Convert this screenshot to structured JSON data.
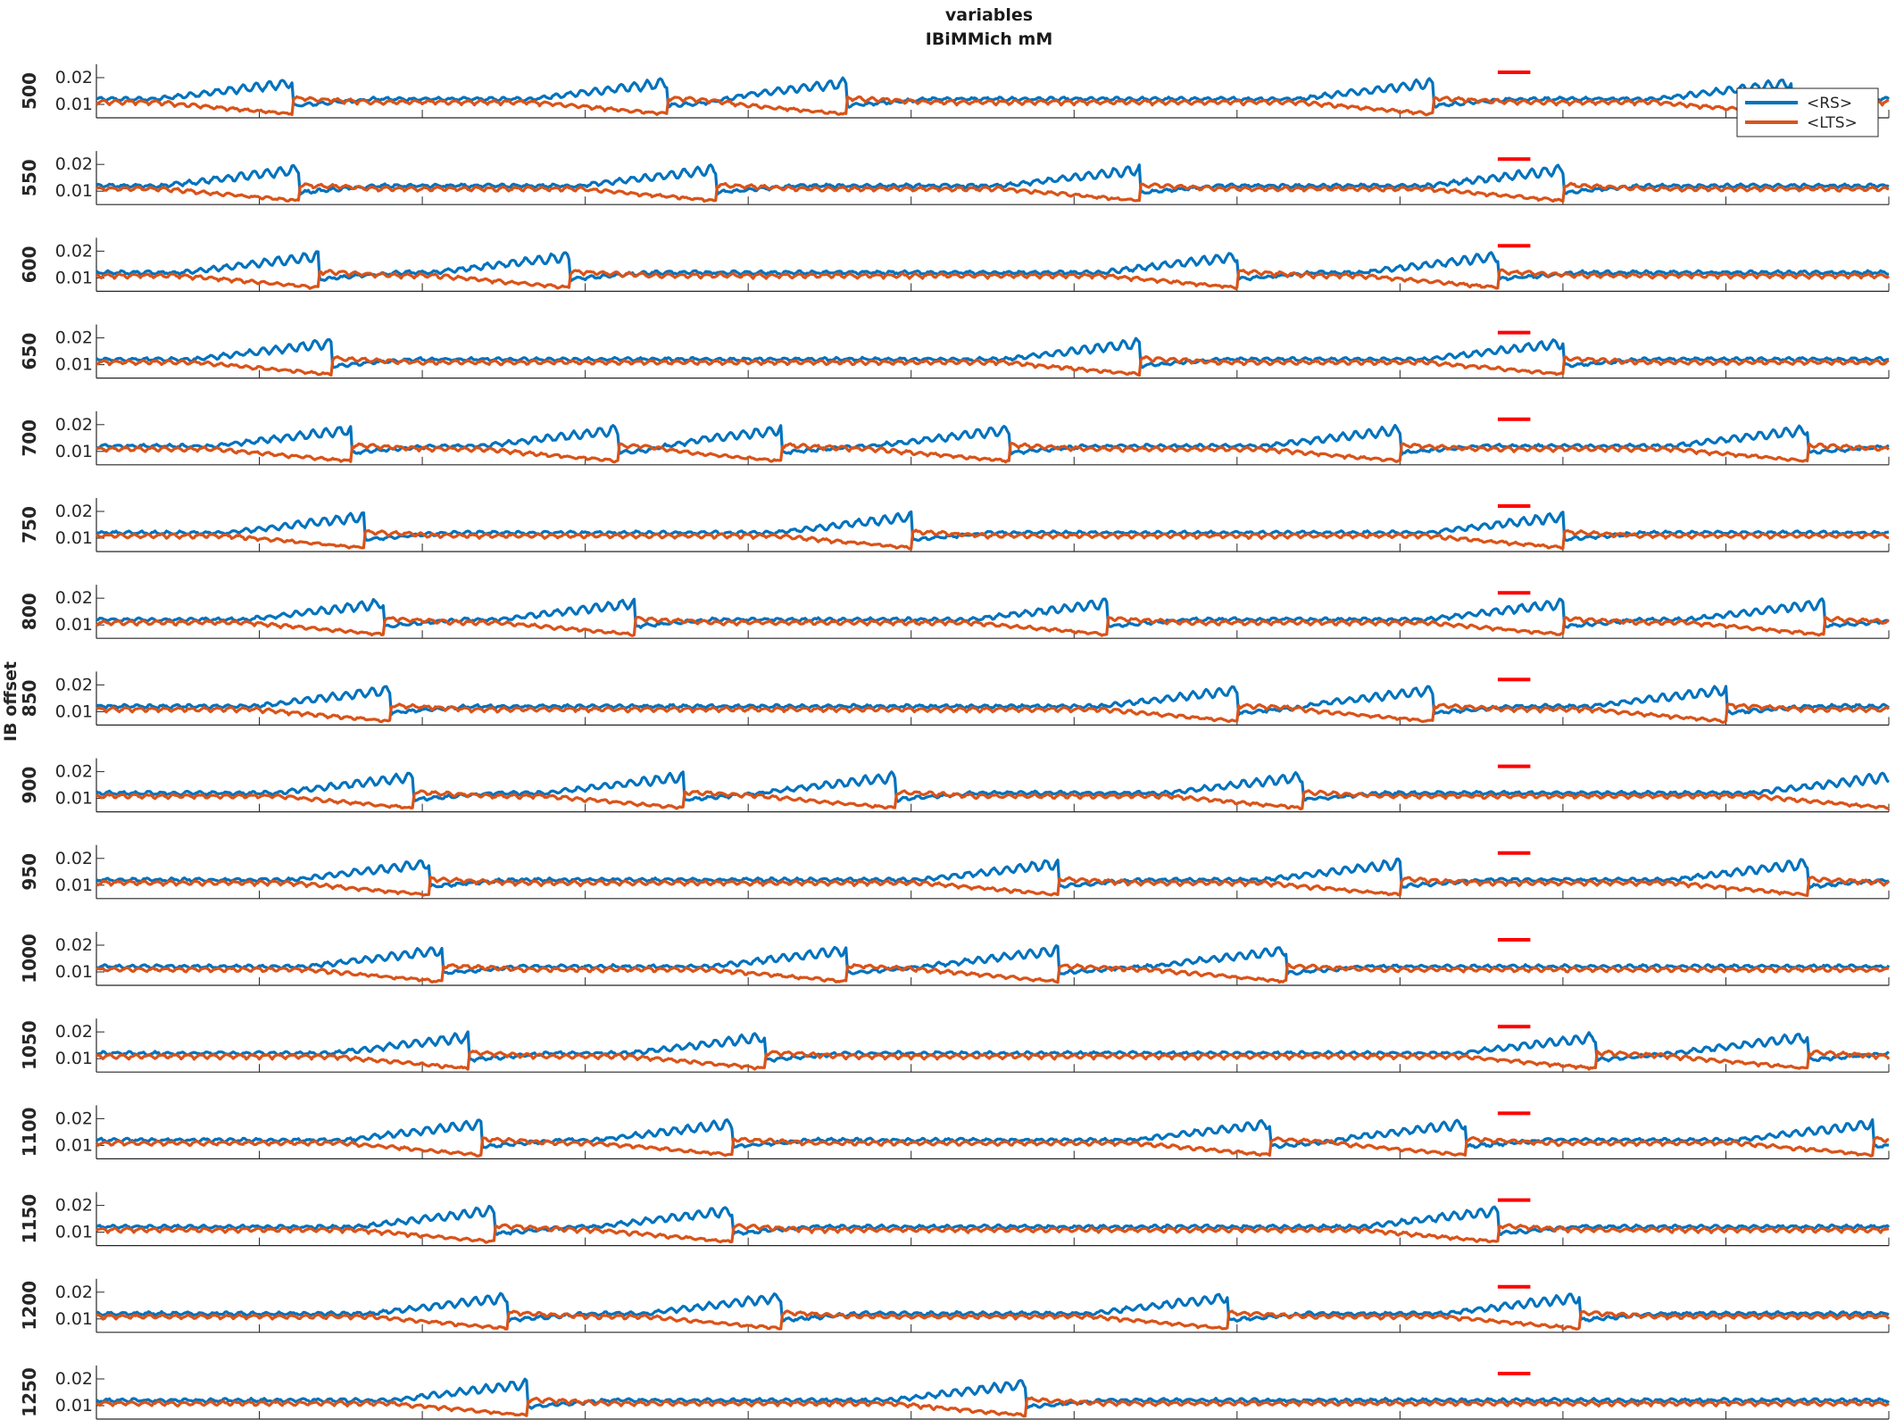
{
  "chart_data": {
    "type": "line",
    "title": "variables",
    "subtitle": "IBiMMich mM",
    "ylabel": "IB offset",
    "xlabel": "",
    "xlim": [
      0,
      5500
    ],
    "x_ticks": [
      "0",
      "500",
      "1000",
      "1500",
      "2000",
      "2500",
      "3000",
      "3500",
      "4000",
      "4500",
      "5000",
      "5500"
    ],
    "ylim": [
      0.005,
      0.025
    ],
    "y_ticks": [
      "0.01",
      "0.02"
    ],
    "panels": [
      "500",
      "550",
      "600",
      "650",
      "700",
      "750",
      "800",
      "850",
      "900",
      "950",
      "1000",
      "1050",
      "1100",
      "1150",
      "1200",
      "1250"
    ],
    "series": [
      {
        "name": "<RS>",
        "color": "#0072BD",
        "baseline": 0.012,
        "oscillation_amplitude": 0.0015,
        "period": 40
      },
      {
        "name": "<LTS>",
        "color": "#D95319",
        "baseline": 0.01,
        "oscillation_amplitude": 0.002,
        "period": 40
      }
    ],
    "burst_peaks": [
      [
        600,
        1750,
        2300,
        4100,
        5200
      ],
      [
        620,
        1900,
        3200,
        4500
      ],
      [
        680,
        1450,
        3500,
        4300
      ],
      [
        720,
        3200,
        4500
      ],
      [
        780,
        1600,
        2100,
        2800,
        4000,
        5250
      ],
      [
        820,
        2500,
        4500
      ],
      [
        880,
        1650,
        3100,
        4500,
        5300
      ],
      [
        900,
        3500,
        4100,
        5000
      ],
      [
        970,
        1800,
        2450,
        3700,
        5500
      ],
      [
        1020,
        2950,
        4000,
        5250
      ],
      [
        1060,
        2300,
        2950,
        3650
      ],
      [
        1140,
        2050,
        4600,
        5250
      ],
      [
        1180,
        1950,
        3600,
        4200,
        5450
      ],
      [
        1220,
        1950,
        4300
      ],
      [
        1260,
        2100,
        3470,
        4550
      ],
      [
        1320,
        2850
      ]
    ],
    "marker": {
      "color": "#ff0000",
      "x_range": [
        4300,
        4400
      ],
      "y": 0.022
    },
    "legend": {
      "entries": [
        "<RS>",
        "<LTS>"
      ],
      "position": "top-right"
    }
  }
}
